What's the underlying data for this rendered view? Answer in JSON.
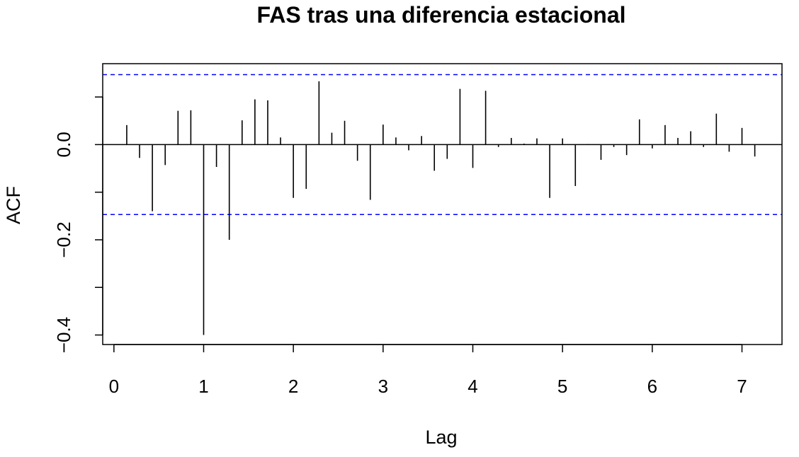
{
  "chart_data": {
    "type": "bar",
    "title": "FAS tras una diferencia estacional",
    "xlabel": "Lag",
    "ylabel": "ACF",
    "xlim": [
      -0.125,
      7.446
    ],
    "ylim": [
      -0.42,
      0.17
    ],
    "x_ticks": [
      0,
      1,
      2,
      3,
      4,
      5,
      6,
      7
    ],
    "x_tick_labels": [
      "0",
      "1",
      "2",
      "3",
      "4",
      "5",
      "6",
      "7"
    ],
    "y_ticks": [
      -0.4,
      -0.2,
      0.0
    ],
    "y_tick_labels": [
      "−0.4",
      "−0.2",
      "0.0"
    ],
    "y_minor_ticks": [
      -0.3,
      -0.1,
      0.1
    ],
    "confidence_band": 0.147,
    "grid": false,
    "legend": "none",
    "colors": {
      "lines": "#000000",
      "confidence": "#0000ff",
      "background": "#ffffff"
    },
    "lags": [
      0.1429,
      0.2857,
      0.4286,
      0.5714,
      0.7143,
      0.8571,
      1.0,
      1.1429,
      1.2857,
      1.4286,
      1.5714,
      1.7143,
      1.8571,
      2.0,
      2.1429,
      2.2857,
      2.4286,
      2.5714,
      2.7143,
      2.8571,
      3.0,
      3.1429,
      3.2857,
      3.4286,
      3.5714,
      3.7143,
      3.8571,
      4.0,
      4.1429,
      4.2857,
      4.4286,
      4.5714,
      4.7143,
      4.8571,
      5.0,
      5.1429,
      5.2857,
      5.4286,
      5.5714,
      5.7143,
      5.8571,
      6.0,
      6.1429,
      6.2857,
      6.4286,
      6.5714,
      6.7143,
      6.8571,
      7.0,
      7.1429
    ],
    "acf": [
      0.041,
      -0.028,
      -0.14,
      -0.043,
      0.071,
      0.072,
      -0.4,
      -0.047,
      -0.2,
      0.051,
      0.095,
      0.093,
      0.015,
      -0.112,
      -0.093,
      0.133,
      0.025,
      0.05,
      -0.034,
      -0.116,
      0.042,
      0.015,
      -0.012,
      0.018,
      -0.055,
      -0.03,
      0.117,
      -0.049,
      0.113,
      -0.005,
      0.014,
      0.002,
      0.013,
      -0.112,
      0.013,
      -0.087,
      0.001,
      -0.032,
      -0.005,
      -0.022,
      0.053,
      -0.008,
      0.041,
      0.014,
      0.028,
      -0.005,
      0.065,
      -0.015,
      0.035,
      -0.025
    ]
  }
}
